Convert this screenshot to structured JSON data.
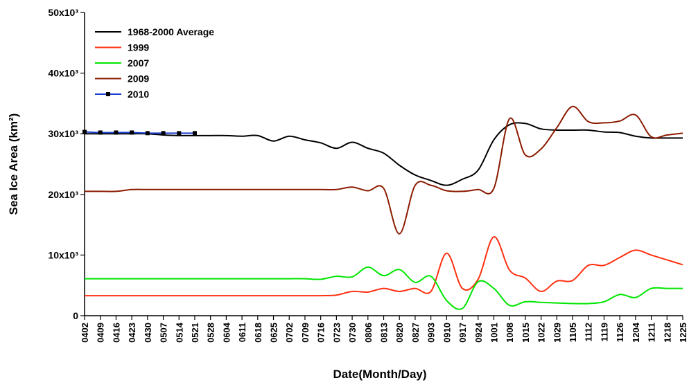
{
  "chart_data": {
    "type": "line",
    "xlabel": "Date(Month/Day)",
    "ylabel": "Sea Ice Area (km²)",
    "categories": [
      "0402",
      "0409",
      "0416",
      "0423",
      "0430",
      "0507",
      "0514",
      "0521",
      "0528",
      "0604",
      "0611",
      "0618",
      "0625",
      "0702",
      "0709",
      "0716",
      "0723",
      "0730",
      "0806",
      "0813",
      "0820",
      "0827",
      "0903",
      "0910",
      "0917",
      "0924",
      "1001",
      "1008",
      "1015",
      "1022",
      "1029",
      "1105",
      "1112",
      "1119",
      "1126",
      "1204",
      "1211",
      "1218",
      "1225"
    ],
    "ylim": [
      0,
      50000
    ],
    "yticks": [
      0,
      {
        "value": 10000,
        "label": "10x10³"
      },
      {
        "value": 20000,
        "label": "20x10³"
      },
      {
        "value": 30000,
        "label": "30x10³"
      },
      {
        "value": 40000,
        "label": "40x10³"
      },
      {
        "value": 50000,
        "label": "50x10³"
      }
    ],
    "legend": "upper left",
    "series": [
      {
        "name": "1968-2000 Average",
        "color": "#000000",
        "values": [
          30000,
          30000,
          30000,
          30000,
          30000,
          29800,
          29700,
          29700,
          29700,
          29700,
          29600,
          29700,
          28800,
          29600,
          29000,
          28500,
          27600,
          28600,
          27600,
          26800,
          24800,
          23200,
          22300,
          21500,
          22500,
          24000,
          29000,
          31500,
          31700,
          30800,
          30600,
          30600,
          30600,
          30300,
          30200,
          29600,
          29300,
          29300,
          29300
        ]
      },
      {
        "name": "1999",
        "color": "#ff3010",
        "values": [
          3300,
          3300,
          3300,
          3300,
          3300,
          3300,
          3300,
          3300,
          3300,
          3300,
          3300,
          3300,
          3300,
          3300,
          3300,
          3300,
          3400,
          4000,
          3900,
          4500,
          4000,
          4500,
          4000,
          10300,
          4500,
          6000,
          13000,
          7500,
          6200,
          4000,
          5700,
          5800,
          8300,
          8300,
          9600,
          10800,
          10000,
          9200,
          8400
        ]
      },
      {
        "name": "2007",
        "color": "#00e600",
        "values": [
          6100,
          6100,
          6100,
          6100,
          6100,
          6100,
          6100,
          6100,
          6100,
          6100,
          6100,
          6100,
          6100,
          6100,
          6100,
          6000,
          6500,
          6400,
          8000,
          6600,
          7600,
          5500,
          6500,
          2500,
          1200,
          5600,
          4500,
          1700,
          2300,
          2200,
          2100,
          2000,
          2000,
          2300,
          3500,
          3000,
          4500,
          4500,
          4500
        ]
      },
      {
        "name": "2009",
        "color": "#8b1a00",
        "values": [
          20500,
          20500,
          20500,
          20800,
          20800,
          20800,
          20800,
          20800,
          20800,
          20800,
          20800,
          20800,
          20800,
          20800,
          20800,
          20800,
          20800,
          21200,
          20600,
          21000,
          13500,
          21500,
          21500,
          20600,
          20500,
          20800,
          21000,
          32500,
          26500,
          27500,
          31000,
          34500,
          32000,
          31800,
          32100,
          33100,
          29500,
          29800,
          30100
        ]
      },
      {
        "name": "2010",
        "color": "#1a3fd0",
        "marker": true,
        "values": [
          30300,
          30200,
          30200,
          30200,
          30100,
          30100,
          30100,
          30100,
          null,
          null,
          null,
          null,
          null,
          null,
          null,
          null,
          null,
          null,
          null,
          null,
          null,
          null,
          null,
          null,
          null,
          null,
          null,
          null,
          null,
          null,
          null,
          null,
          null,
          null,
          null,
          null,
          null,
          null,
          null
        ]
      }
    ]
  }
}
